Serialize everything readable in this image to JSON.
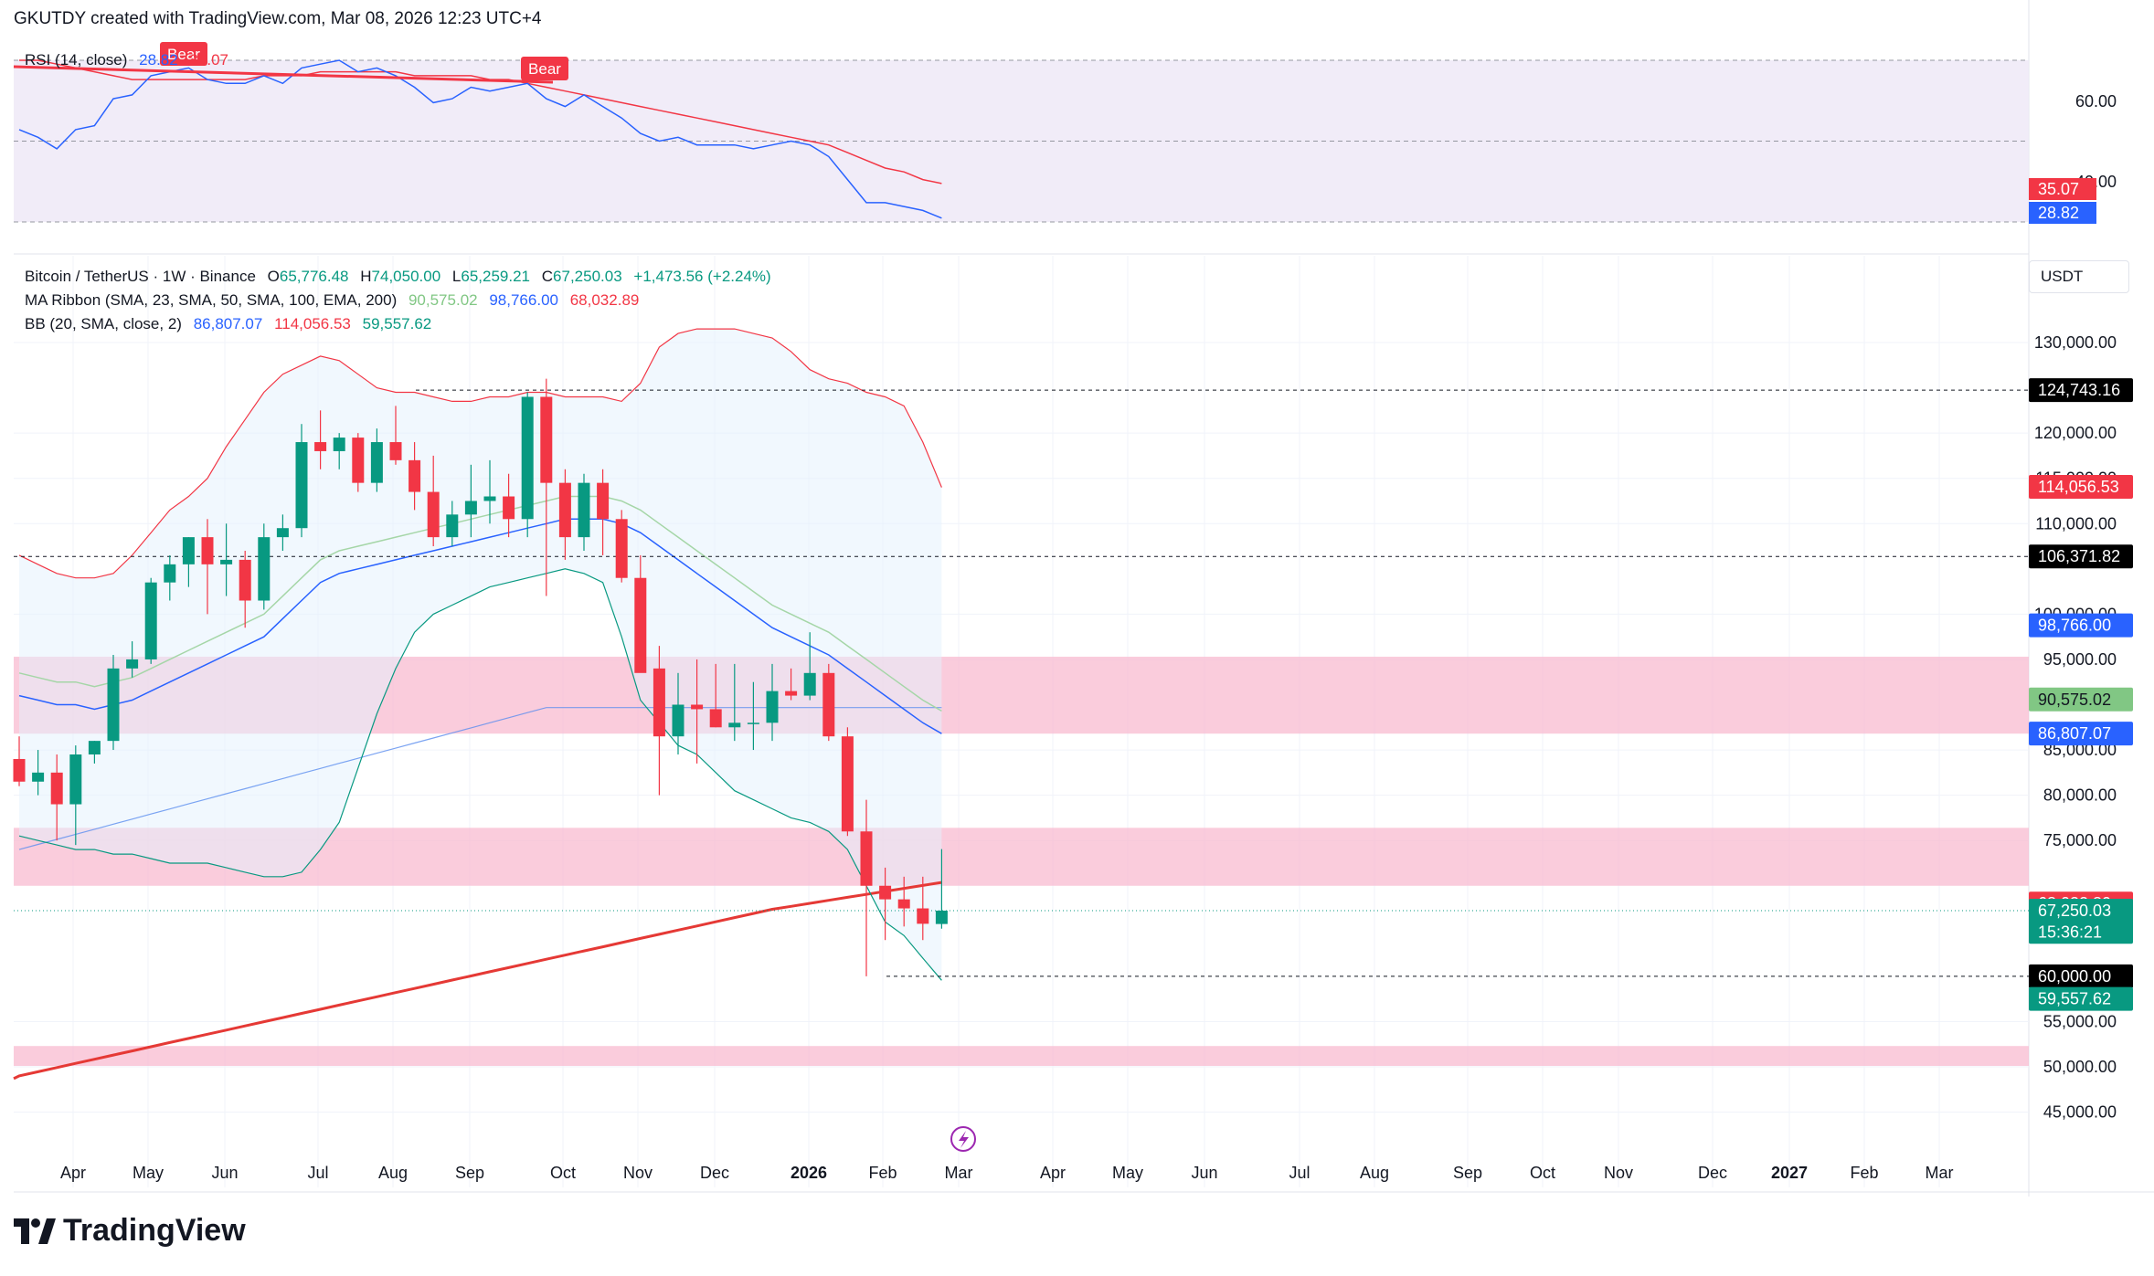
{
  "header": {
    "text": "GKUTDY created with TradingView.com, Mar 08, 2026 12:23 UTC+4"
  },
  "rsi": {
    "label": "RSI (14, close)",
    "value": "28.82",
    "ma_value": "35.07",
    "ticks": [
      "60.00",
      "40.00"
    ],
    "bear_labels": [
      "Bear",
      "Bear"
    ]
  },
  "legend": {
    "title": "Bitcoin / TetherUS · 1W · Binance",
    "o_label": "O",
    "o": "65,776.48",
    "h_label": "H",
    "h": "74,050.00",
    "l_label": "L",
    "l": "65,259.21",
    "c_label": "C",
    "c": "67,250.03",
    "chg": "+1,473.56 (+2.24%)",
    "ma_label": "MA Ribbon (SMA, 23, SMA, 50, SMA, 100, EMA, 200)",
    "ma_vals": [
      "90,575.02",
      "98,766.00",
      "68,032.89"
    ],
    "bb_label": "BB (20, SMA, close, 2)",
    "bb_vals": [
      "86,807.07",
      "114,056.53",
      "59,557.62"
    ]
  },
  "unit": "USDT",
  "price_labels": [
    {
      "text": "124,743.16",
      "bg": "#000000",
      "fg": "#ffffff",
      "price": 124743.16
    },
    {
      "text": "114,056.53",
      "bg": "#f23645",
      "fg": "#ffffff",
      "price": 114056.53
    },
    {
      "text": "106,371.82",
      "bg": "#000000",
      "fg": "#ffffff",
      "price": 106371.82
    },
    {
      "text": "98,766.00",
      "bg": "#2962ff",
      "fg": "#ffffff",
      "price": 98766.0
    },
    {
      "text": "90,575.02",
      "bg": "#81c784",
      "fg": "#131722",
      "price": 90575.02
    },
    {
      "text": "86,807.07",
      "bg": "#2962ff",
      "fg": "#ffffff",
      "price": 86807.07
    },
    {
      "text": "68,032.89",
      "bg": "#f23645",
      "fg": "#ffffff",
      "price": 68032.89
    },
    {
      "text": "67,250.03",
      "bg": "#089981",
      "fg": "#ffffff",
      "price": 67250.03
    },
    {
      "text": "15:36:21",
      "bg": "#089981",
      "fg": "#ffffff",
      "price": 64900
    },
    {
      "text": "60,000.00",
      "bg": "#000000",
      "fg": "#ffffff",
      "price": 60000.0
    },
    {
      "text": "59,557.62",
      "bg": "#089981",
      "fg": "#ffffff",
      "price": 57500
    }
  ],
  "brand": "TradingView",
  "colors": {
    "up": "#089981",
    "down": "#f23645",
    "zone": "#f8bbd0",
    "bb_fill": "#e3f2fd",
    "rsi_bg": "#ede7f6"
  },
  "chart_data": {
    "type": "candlestick",
    "title": "Bitcoin / TetherUS · 1W · Binance",
    "y_ticks": [
      130000,
      120000,
      115000,
      110000,
      100000,
      95000,
      85000,
      80000,
      75000,
      55000,
      50000,
      45000
    ],
    "y_tick_labels": [
      "130,000.00",
      "120,000.00",
      "115,000.00",
      "110,000.00",
      "100,000.00",
      "95,000.00",
      "85,000.00",
      "80,000.00",
      "75,000.00",
      "55,000.00",
      "50,000.00",
      "45,000.00"
    ],
    "x_labels": [
      "Apr",
      "May",
      "Jun",
      "Jul",
      "Aug",
      "Sep",
      "Oct",
      "Nov",
      "Dec",
      "2026",
      "Feb",
      "Mar",
      "Apr",
      "May",
      "Jun",
      "Jul",
      "Aug",
      "Sep",
      "Oct",
      "Nov",
      "Dec",
      "2027",
      "Feb",
      "Mar"
    ],
    "ylim": [
      42000,
      138000
    ],
    "ohlc": [
      [
        84000,
        86500,
        81000,
        81500
      ],
      [
        81500,
        85000,
        80000,
        82500
      ],
      [
        82500,
        84500,
        75000,
        79000
      ],
      [
        79000,
        85500,
        74500,
        84500
      ],
      [
        84500,
        86000,
        83500,
        86000
      ],
      [
        86000,
        95500,
        85000,
        94000
      ],
      [
        94000,
        97000,
        93000,
        95000
      ],
      [
        95000,
        104000,
        94500,
        103500
      ],
      [
        103500,
        106500,
        101500,
        105500
      ],
      [
        105500,
        108500,
        103000,
        108500
      ],
      [
        108500,
        110500,
        100000,
        105500
      ],
      [
        105500,
        110000,
        102000,
        106000
      ],
      [
        106000,
        107000,
        98500,
        101500
      ],
      [
        101500,
        110000,
        100500,
        108500
      ],
      [
        108500,
        111000,
        107000,
        109500
      ],
      [
        109500,
        121000,
        108500,
        119000
      ],
      [
        119000,
        122500,
        116000,
        118000
      ],
      [
        118000,
        120000,
        116000,
        119500
      ],
      [
        119500,
        120000,
        113500,
        114500
      ],
      [
        114500,
        120500,
        113500,
        119000
      ],
      [
        119000,
        123000,
        116500,
        117000
      ],
      [
        117000,
        119000,
        111500,
        113500
      ],
      [
        113500,
        117500,
        107500,
        108500
      ],
      [
        108500,
        112500,
        107500,
        111000
      ],
      [
        111000,
        116500,
        108500,
        112500
      ],
      [
        112500,
        117000,
        110000,
        113000
      ],
      [
        113000,
        115500,
        108500,
        110500
      ],
      [
        110500,
        124500,
        108500,
        124000
      ],
      [
        124000,
        126000,
        102000,
        114500
      ],
      [
        114500,
        116000,
        106000,
        108500
      ],
      [
        108500,
        115500,
        107000,
        114500
      ],
      [
        114500,
        116000,
        106500,
        110500
      ],
      [
        110500,
        111500,
        103500,
        104000
      ],
      [
        104000,
        106500,
        94000,
        93500
      ],
      [
        94000,
        96500,
        80000,
        86500
      ],
      [
        86500,
        93500,
        84500,
        90000
      ],
      [
        90000,
        95000,
        83500,
        89500
      ],
      [
        89500,
        94500,
        87500,
        87500
      ],
      [
        87500,
        94500,
        86000,
        88000
      ],
      [
        88000,
        92500,
        85000,
        88000
      ],
      [
        88000,
        94500,
        86000,
        91500
      ],
      [
        91500,
        94000,
        90500,
        91000
      ],
      [
        91000,
        98000,
        90500,
        93500
      ],
      [
        93500,
        94500,
        86000,
        86500
      ],
      [
        86500,
        87500,
        75500,
        76000
      ],
      [
        76000,
        79500,
        60000,
        70000
      ],
      [
        70000,
        72000,
        64000,
        68500
      ],
      [
        68500,
        71000,
        65500,
        67500
      ],
      [
        67500,
        71000,
        64000,
        65800
      ],
      [
        65776.48,
        74050,
        65259.21,
        67250.03
      ]
    ],
    "bb_upper": [
      106500,
      105500,
      104500,
      104000,
      104000,
      104500,
      106500,
      109000,
      111500,
      113000,
      115000,
      118500,
      121500,
      124500,
      126500,
      127500,
      128500,
      128000,
      126500,
      125000,
      124500,
      124500,
      124000,
      123500,
      123500,
      124000,
      124000,
      124500,
      124500,
      124000,
      124000,
      124000,
      123500,
      125500,
      129500,
      131000,
      131500,
      131500,
      131500,
      131000,
      130500,
      129000,
      127000,
      126000,
      125500,
      124500,
      124000,
      123000,
      119000,
      114000
    ],
    "bb_mid": [
      91000,
      90500,
      90000,
      90000,
      89500,
      90000,
      90500,
      91500,
      92500,
      93500,
      94500,
      95500,
      96500,
      97500,
      99500,
      101500,
      103500,
      104500,
      105000,
      105500,
      106000,
      106500,
      107000,
      107500,
      108000,
      108500,
      109000,
      109500,
      110000,
      110500,
      110500,
      110500,
      110000,
      109000,
      107500,
      106000,
      104500,
      103000,
      101500,
      100000,
      98500,
      97500,
      96500,
      95500,
      94000,
      92500,
      91000,
      89500,
      88000,
      86800
    ],
    "bb_lower": [
      75500,
      75000,
      74500,
      74000,
      74000,
      73500,
      73500,
      73000,
      72500,
      72500,
      72500,
      72000,
      71500,
      71000,
      71000,
      71500,
      74000,
      77000,
      83000,
      89000,
      94000,
      98000,
      100000,
      101000,
      102000,
      103000,
      103500,
      104000,
      104500,
      105000,
      104500,
      103500,
      97500,
      90500,
      88000,
      85500,
      84500,
      82500,
      80500,
      79500,
      78500,
      77500,
      77000,
      76000,
      74000,
      70000,
      66000,
      64500,
      62000,
      59557
    ]
  }
}
